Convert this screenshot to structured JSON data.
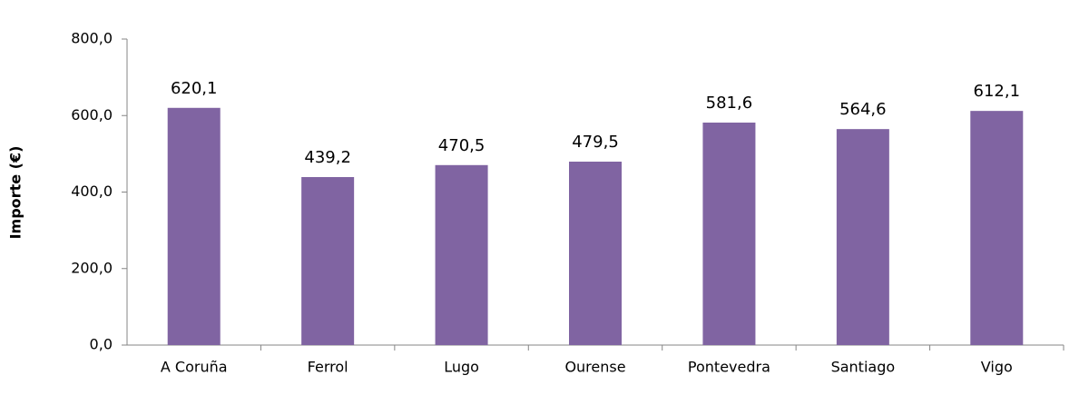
{
  "chart_data": {
    "type": "bar",
    "y_label": "Importe (€)",
    "categories": [
      "A Coruña",
      "Ferrol",
      "Lugo",
      "Ourense",
      "Pontevedra",
      "Santiago",
      "Vigo"
    ],
    "values": [
      620.1,
      439.2,
      470.5,
      479.5,
      581.6,
      564.6,
      612.1
    ],
    "value_labels": [
      "620,1",
      "439,2",
      "470,5",
      "479,5",
      "581,6",
      "564,6",
      "612,1"
    ],
    "color": "#8064a2",
    "ylim": [
      0,
      800
    ],
    "yticks": [
      {
        "value": 0,
        "label": "0,0"
      },
      {
        "value": 200,
        "label": "200,0"
      },
      {
        "value": 400,
        "label": "400,0"
      },
      {
        "value": 600,
        "label": "600,0"
      },
      {
        "value": 800,
        "label": "800,0"
      }
    ],
    "grid": false
  }
}
